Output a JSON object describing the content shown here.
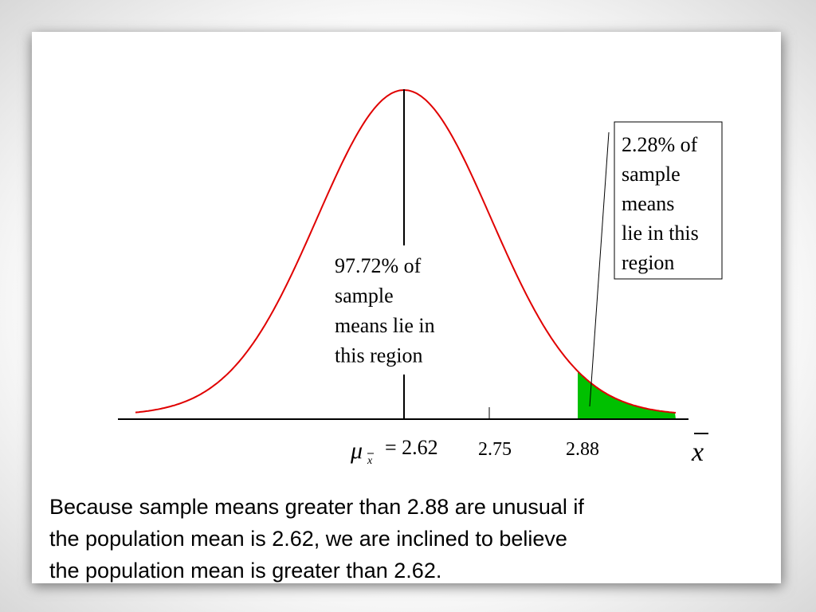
{
  "diagram": {
    "middle_note": [
      "97.72% of",
      "sample",
      "means lie in",
      "this region"
    ],
    "tail_note": [
      "2.28% of",
      "sample",
      "means",
      "lie in this",
      "region"
    ],
    "mean_symbol": "μ",
    "mean_subscript": "x",
    "mean_value": "= 2.62",
    "axis_labels": [
      "2.75",
      "2.88"
    ],
    "axis_variable": "x"
  },
  "caption": [
    "Because sample means greater than 2.88 are unusual if",
    "the population mean is 2.62, we are inclined to believe",
    "the population mean is greater than 2.62."
  ]
}
